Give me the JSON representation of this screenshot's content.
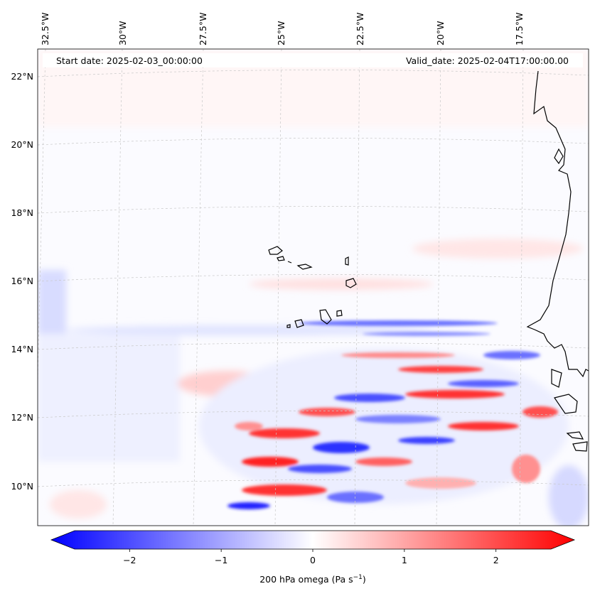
{
  "header": {
    "start_date": "Start date: 2025-02-03_00:00:00",
    "valid_date": "Valid_date: 2025-02-04T17:00:00.00"
  },
  "map": {
    "variable": "200 hPa omega",
    "longitude_labels": [
      "32.5°W",
      "30°W",
      "27.5°W",
      "25°W",
      "22.5°W",
      "20°W",
      "17.5°W"
    ],
    "latitude_labels": [
      "22°N",
      "20°N",
      "18°N",
      "16°N",
      "14°N",
      "12°N",
      "10°N"
    ],
    "colors": {
      "negative": "#0000ff",
      "zero": "#ffffff",
      "positive": "#ff0000",
      "coast": "#000000"
    }
  },
  "colorbar": {
    "ticks": [
      "−2",
      "−1",
      "0",
      "1",
      "2"
    ],
    "tick_values": [
      -2,
      -1,
      0,
      1,
      2
    ],
    "range": [
      -2.6,
      2.6
    ],
    "label_main": "200 hPa omega (Pa s",
    "label_sup": "−1",
    "label_end": ")"
  }
}
